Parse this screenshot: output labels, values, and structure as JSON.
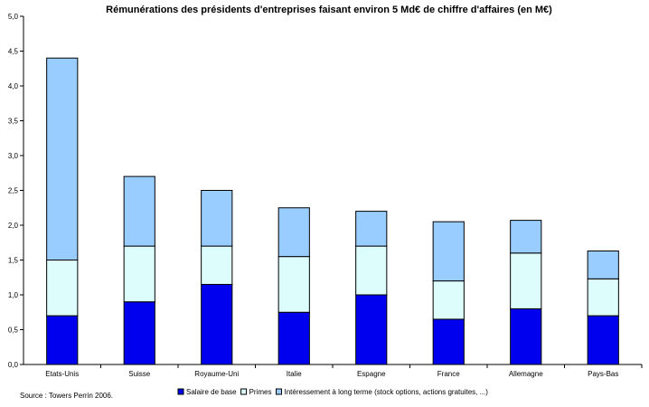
{
  "chart_data": {
    "type": "bar",
    "stacked": true,
    "title": "Rémunérations des présidents d'entreprises faisant environ 5 Md€ de chiffre d'affaires (en M€)",
    "categories": [
      "Etats-Unis",
      "Suisse",
      "Royaume-Uni",
      "Italie",
      "Espagne",
      "France",
      "Allemagne",
      "Pays-Bas"
    ],
    "series": [
      {
        "name": "Salaire de base",
        "color": "#0000ee",
        "values": [
          0.7,
          0.9,
          1.15,
          0.75,
          1.0,
          0.65,
          0.8,
          0.7
        ]
      },
      {
        "name": "Primes",
        "color": "#ddfdfd",
        "values": [
          0.8,
          0.8,
          0.55,
          0.8,
          0.7,
          0.55,
          0.8,
          0.53
        ]
      },
      {
        "name": "Intéressement à long terme (stock options, actions gratuites, ...)",
        "color": "#99ccff",
        "values": [
          2.9,
          1.0,
          0.8,
          0.7,
          0.5,
          0.85,
          0.47,
          0.4
        ]
      }
    ],
    "yticks": [
      "0,0",
      "0,5",
      "1,0",
      "1,5",
      "2,0",
      "2,5",
      "3,0",
      "3,5",
      "4,0",
      "4,5",
      "5,0"
    ],
    "ylim": [
      0,
      5
    ],
    "grid": false,
    "legend_position": "bottom"
  },
  "source_note": "Source : Towers Perrin 2006."
}
